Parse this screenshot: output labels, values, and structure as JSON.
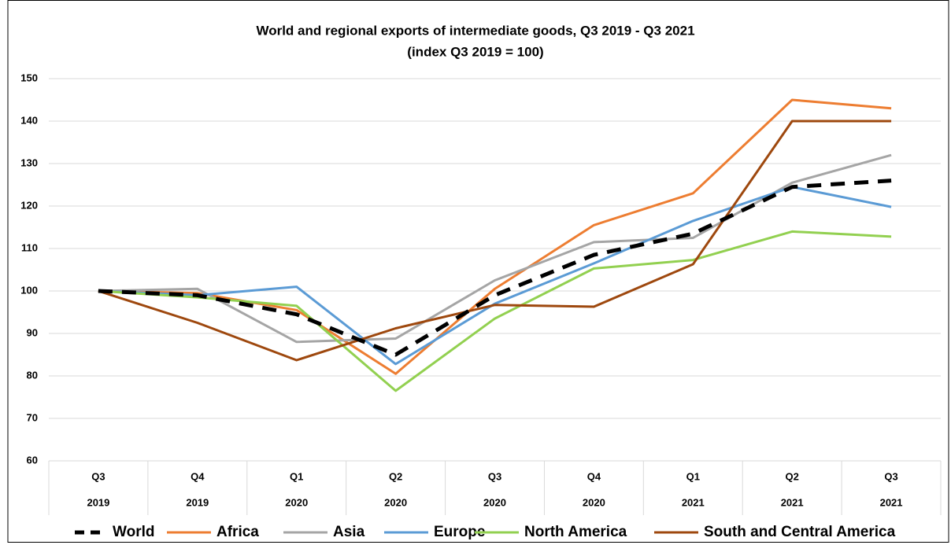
{
  "chart_data": {
    "type": "line",
    "title": "World and regional exports of intermediate goods, Q3 2019 - Q3 2021",
    "subtitle": "(index Q3 2019 = 100)",
    "categories": [
      {
        "quarter": "Q3",
        "year": "2019"
      },
      {
        "quarter": "Q4",
        "year": "2019"
      },
      {
        "quarter": "Q1",
        "year": "2020"
      },
      {
        "quarter": "Q2",
        "year": "2020"
      },
      {
        "quarter": "Q3",
        "year": "2020"
      },
      {
        "quarter": "Q4",
        "year": "2020"
      },
      {
        "quarter": "Q1",
        "year": "2021"
      },
      {
        "quarter": "Q2",
        "year": "2021"
      },
      {
        "quarter": "Q3",
        "year": "2021"
      }
    ],
    "series": [
      {
        "name": "World",
        "color": "#000000",
        "dashed": true,
        "values": [
          100,
          99,
          94.5,
          85,
          99,
          108.5,
          113.5,
          124.5,
          126
        ]
      },
      {
        "name": "Africa",
        "color": "#ED7D31",
        "values": [
          100,
          99.5,
          95.5,
          80.5,
          100.5,
          115.5,
          123,
          145,
          143
        ]
      },
      {
        "name": "Asia",
        "color": "#A5A5A5",
        "values": [
          100,
          100.5,
          88,
          88.8,
          102.5,
          111.5,
          112.5,
          125.5,
          132
        ]
      },
      {
        "name": "Europe",
        "color": "#5B9BD5",
        "values": [
          100,
          99,
          101,
          82.8,
          97,
          106.5,
          116.5,
          124.5,
          119.8
        ]
      },
      {
        "name": "North America",
        "color": "#92D050",
        "values": [
          100,
          98.5,
          96.5,
          76.5,
          93.5,
          105.3,
          107.3,
          114,
          112.8
        ]
      },
      {
        "name": "South and Central America",
        "color": "#9E480E",
        "values": [
          100,
          92.5,
          83.7,
          91.2,
          96.7,
          96.3,
          106.3,
          140,
          140
        ]
      }
    ],
    "ylim": [
      60,
      150
    ],
    "yticks": [
      60,
      70,
      80,
      90,
      100,
      110,
      120,
      130,
      140,
      150
    ],
    "grid": true,
    "legend": "bottom"
  }
}
